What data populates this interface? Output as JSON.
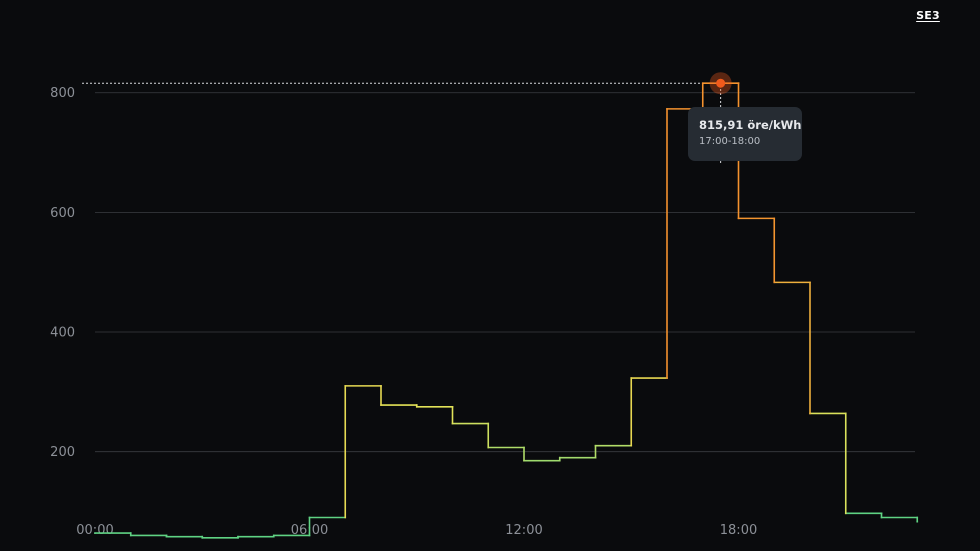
{
  "header": {
    "region_label": "SE3"
  },
  "tooltip": {
    "value": "815,91 öre/kWh",
    "time": "17:00-18:00"
  },
  "chart_data": {
    "type": "line",
    "step": true,
    "title": "",
    "xlabel": "",
    "ylabel": "",
    "unit": "öre/kWh",
    "x": [
      "00:00",
      "01:00",
      "02:00",
      "03:00",
      "04:00",
      "05:00",
      "06:00",
      "07:00",
      "08:00",
      "09:00",
      "10:00",
      "11:00",
      "12:00",
      "13:00",
      "14:00",
      "15:00",
      "16:00",
      "17:00",
      "18:00",
      "19:00",
      "20:00",
      "21:00",
      "22:00",
      "23:00"
    ],
    "values": [
      64,
      60,
      58,
      56,
      58,
      60,
      90,
      310,
      278,
      275,
      247,
      207,
      185,
      190,
      210,
      323,
      773,
      815.91,
      590,
      483,
      264,
      97,
      90,
      83
    ],
    "xticks": [
      "00:00",
      "06:00",
      "12:00",
      "18:00"
    ],
    "yticks": [
      200,
      400,
      600,
      800
    ],
    "ylim": [
      34,
      955
    ],
    "grid": true,
    "highlight_index": 17,
    "line_colors": {
      "low": "#5fd383",
      "mid": "#e6e357",
      "high": "#f4922e",
      "marker": "#f15a1c"
    },
    "tick_color": "#8c9097",
    "grid_color": "#3a3d42"
  }
}
